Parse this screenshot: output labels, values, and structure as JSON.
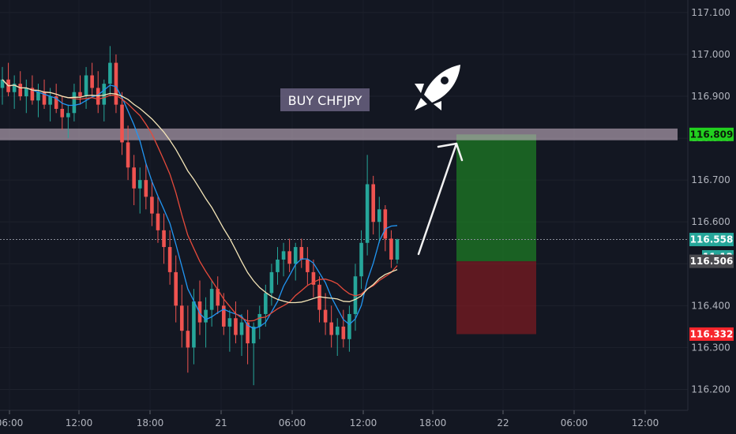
{
  "chart_data": {
    "type": "candlestick",
    "annotation": "BUY CHFJPY",
    "ylim": [
      116.15,
      117.13
    ],
    "yticks": [
      "117.100",
      "117.000",
      "116.900",
      "116.800",
      "116.700",
      "116.600",
      "116.500",
      "116.400",
      "116.300",
      "116.200"
    ],
    "xticks": [
      "06:00",
      "12:00",
      "18:00",
      "21",
      "06:00",
      "12:00",
      "18:00",
      "22",
      "06:00",
      "12:00"
    ],
    "levels": {
      "target": "116.809",
      "current": "116.558",
      "countdown": "11:12",
      "entry": "116.506",
      "stop": "116.332"
    },
    "levels_num": {
      "target": 116.809,
      "current": 116.558,
      "entry": 116.506,
      "stop": 116.332
    },
    "ranges": {
      "resistance_zone": [
        116.795,
        116.823
      ]
    },
    "ohlc": [
      [
        116.92,
        116.97,
        116.88,
        116.94
      ],
      [
        116.94,
        116.98,
        116.9,
        116.91
      ],
      [
        116.91,
        116.95,
        116.87,
        116.93
      ],
      [
        116.93,
        116.96,
        116.89,
        116.9
      ],
      [
        116.9,
        116.94,
        116.86,
        116.92
      ],
      [
        116.92,
        116.95,
        116.88,
        116.89
      ],
      [
        116.89,
        116.93,
        116.85,
        116.91
      ],
      [
        116.91,
        116.94,
        116.87,
        116.88
      ],
      [
        116.88,
        116.92,
        116.84,
        116.9
      ],
      [
        116.9,
        116.93,
        116.86,
        116.87
      ],
      [
        116.87,
        116.9,
        116.82,
        116.85
      ],
      [
        116.85,
        116.88,
        116.8,
        116.86
      ],
      [
        116.86,
        116.93,
        116.84,
        116.91
      ],
      [
        116.91,
        116.95,
        116.88,
        116.9
      ],
      [
        116.9,
        116.97,
        116.87,
        116.95
      ],
      [
        116.95,
        116.98,
        116.9,
        116.92
      ],
      [
        116.92,
        116.96,
        116.86,
        116.88
      ],
      [
        116.88,
        116.94,
        116.84,
        116.93
      ],
      [
        116.93,
        117.02,
        116.9,
        116.98
      ],
      [
        116.98,
        117.0,
        116.86,
        116.88
      ],
      [
        116.88,
        116.91,
        116.76,
        116.79
      ],
      [
        116.79,
        116.83,
        116.7,
        116.73
      ],
      [
        116.73,
        116.76,
        116.64,
        116.68
      ],
      [
        116.68,
        116.73,
        116.62,
        116.7
      ],
      [
        116.7,
        116.74,
        116.63,
        116.66
      ],
      [
        116.66,
        116.7,
        116.59,
        116.62
      ],
      [
        116.62,
        116.66,
        116.55,
        116.58
      ],
      [
        116.58,
        116.62,
        116.5,
        116.54
      ],
      [
        116.54,
        116.58,
        116.45,
        116.48
      ],
      [
        116.48,
        116.52,
        116.36,
        116.4
      ],
      [
        116.4,
        116.45,
        116.3,
        116.34
      ],
      [
        116.34,
        116.4,
        116.24,
        116.3
      ],
      [
        116.3,
        116.44,
        116.26,
        116.41
      ],
      [
        116.41,
        116.46,
        116.33,
        116.36
      ],
      [
        116.36,
        116.42,
        116.3,
        116.39
      ],
      [
        116.39,
        116.46,
        116.35,
        116.44
      ],
      [
        116.44,
        116.47,
        116.38,
        116.4
      ],
      [
        116.4,
        116.43,
        116.33,
        116.35
      ],
      [
        116.35,
        116.39,
        116.29,
        116.37
      ],
      [
        116.37,
        116.41,
        116.31,
        116.33
      ],
      [
        116.33,
        116.38,
        116.28,
        116.36
      ],
      [
        116.36,
        116.39,
        116.26,
        116.31
      ],
      [
        116.31,
        116.36,
        116.21,
        116.35
      ],
      [
        116.35,
        116.4,
        116.32,
        116.38
      ],
      [
        116.38,
        116.45,
        116.35,
        116.43
      ],
      [
        116.43,
        116.5,
        116.4,
        116.48
      ],
      [
        116.48,
        116.54,
        116.45,
        116.51
      ],
      [
        116.51,
        116.55,
        116.47,
        116.53
      ],
      [
        116.53,
        116.56,
        116.48,
        116.5
      ],
      [
        116.5,
        116.55,
        116.46,
        116.54
      ],
      [
        116.54,
        116.56,
        116.49,
        116.51
      ],
      [
        116.51,
        116.54,
        116.45,
        116.48
      ],
      [
        116.48,
        116.51,
        116.42,
        116.45
      ],
      [
        116.45,
        116.47,
        116.36,
        116.39
      ],
      [
        116.39,
        116.43,
        116.33,
        116.36
      ],
      [
        116.36,
        116.4,
        116.3,
        116.33
      ],
      [
        116.33,
        116.37,
        116.28,
        116.35
      ],
      [
        116.35,
        116.39,
        116.3,
        116.32
      ],
      [
        116.32,
        116.4,
        116.29,
        116.38
      ],
      [
        116.38,
        116.5,
        116.34,
        116.47
      ],
      [
        116.47,
        116.58,
        116.44,
        116.55
      ],
      [
        116.55,
        116.76,
        116.52,
        116.69
      ],
      [
        116.69,
        116.71,
        116.57,
        116.6
      ],
      [
        116.6,
        116.66,
        116.55,
        116.63
      ],
      [
        116.63,
        116.64,
        116.53,
        116.56
      ],
      [
        116.56,
        116.58,
        116.49,
        116.51
      ],
      [
        116.51,
        116.56,
        116.5,
        116.558
      ]
    ]
  }
}
